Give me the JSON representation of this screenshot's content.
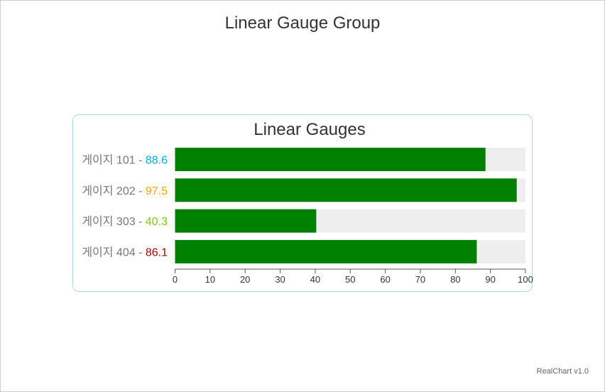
{
  "chart_data": {
    "type": "bar",
    "title": "Linear Gauge Group",
    "subtitle": "Linear Gauges",
    "categories": [
      "게이지 101",
      "게이지 202",
      "게이지 303",
      "게이지 404"
    ],
    "values": [
      88.6,
      97.5,
      40.3,
      86.1
    ],
    "value_colors": [
      "#00aaee",
      "#ffa500",
      "#7fcc00",
      "#aa0000"
    ],
    "label_separator": " - ",
    "bar_color": "#008000",
    "track_color": "#eeeeee",
    "xlim": [
      0,
      100
    ],
    "ticks": [
      0,
      10,
      20,
      30,
      40,
      50,
      60,
      70,
      80,
      90,
      100
    ],
    "xlabel": "",
    "ylabel": ""
  },
  "credits": "RealChart v1.0"
}
